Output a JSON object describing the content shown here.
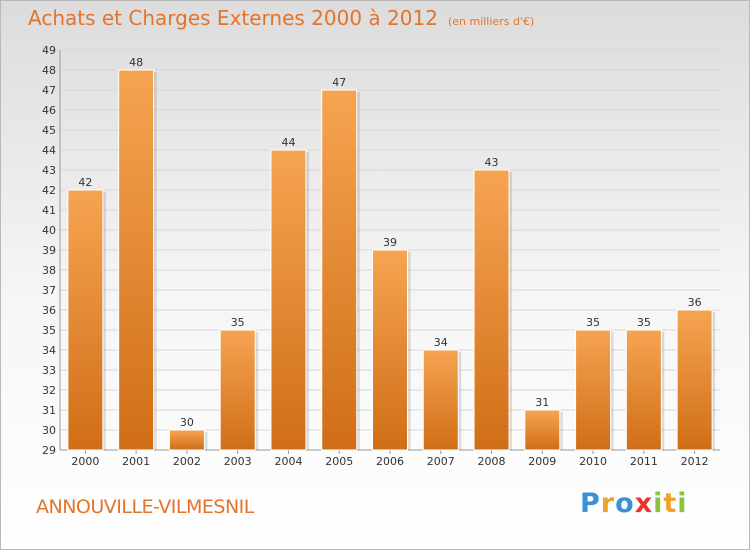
{
  "header": {
    "title": "Achats et Charges Externes 2000 à 2012",
    "subtitle": "(en milliers d'€)"
  },
  "footer": {
    "commune": "ANNOUVILLE-VILMESNIL",
    "logo": "Proxiti"
  },
  "colors": {
    "bar_top": "#f6a452",
    "bar_bottom": "#d06e17",
    "text_accent": "#e3742a",
    "grid": "#d8d8d8"
  },
  "chart_data": {
    "type": "bar",
    "categories": [
      "2000",
      "2001",
      "2002",
      "2003",
      "2004",
      "2005",
      "2006",
      "2007",
      "2008",
      "2009",
      "2010",
      "2011",
      "2012"
    ],
    "values": [
      42,
      48,
      30,
      35,
      44,
      47,
      39,
      34,
      43,
      31,
      35,
      35,
      36
    ],
    "title": "Achats et Charges Externes 2000 à 2012",
    "subtitle": "(en milliers d'€)",
    "xlabel": "",
    "ylabel": "",
    "ylim": [
      29,
      49
    ],
    "yticks": [
      29,
      30,
      31,
      32,
      33,
      34,
      35,
      36,
      37,
      38,
      39,
      40,
      41,
      42,
      43,
      44,
      45,
      46,
      47,
      48,
      49
    ],
    "grid": "horizontal"
  }
}
